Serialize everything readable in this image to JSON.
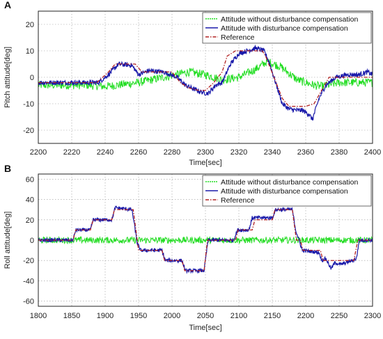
{
  "chart_data": [
    {
      "type": "line",
      "panel": "A",
      "xlabel": "Time[sec]",
      "ylabel": "Pitch attitude[deg]",
      "xlim": [
        2200,
        2400
      ],
      "ylim": [
        -25,
        25
      ],
      "xticks": [
        2200,
        2220,
        2240,
        2260,
        2280,
        2300,
        2320,
        2340,
        2360,
        2380,
        2400
      ],
      "yticks": [
        -20,
        -10,
        0,
        10,
        20
      ],
      "grid": true,
      "legend": "top-right",
      "series": [
        {
          "name": "Attitude without disturbance compensation",
          "color": "#22dd22",
          "style": "noisy",
          "x": [
            2200,
            2230,
            2240,
            2260,
            2275,
            2290,
            2300,
            2310,
            2320,
            2330,
            2337,
            2345,
            2355,
            2365,
            2370,
            2380,
            2400
          ],
          "y": [
            -3,
            -3,
            -3.5,
            -2,
            0,
            2,
            1,
            -1,
            0,
            3,
            6,
            4,
            -1,
            -3,
            -3.5,
            -2,
            -2
          ]
        },
        {
          "name": "Attitude with disturbance compensation",
          "color": "#1a1aaa",
          "style": "solid",
          "x": [
            2200,
            2236,
            2242,
            2248,
            2256,
            2260,
            2266,
            2275,
            2283,
            2288,
            2295,
            2300,
            2302,
            2306,
            2310,
            2315,
            2320,
            2330,
            2335,
            2338,
            2342,
            2346,
            2350,
            2355,
            2358,
            2362,
            2364,
            2368,
            2372,
            2378,
            2385,
            2392,
            2397,
            2400
          ],
          "y": [
            -2,
            -2,
            1,
            5,
            4.5,
            1,
            2.5,
            2,
            0,
            -3,
            -5,
            -6,
            -6,
            -3,
            -2,
            5,
            9,
            11,
            10,
            6,
            -2,
            -10,
            -12,
            -12.5,
            -12.5,
            -14,
            -16,
            -8,
            -3,
            0,
            1,
            1,
            2,
            1
          ]
        },
        {
          "name": "Reference",
          "color": "#b22222",
          "style": "dashdot",
          "x": [
            2200,
            2235,
            2242,
            2246,
            2258,
            2262,
            2280,
            2285,
            2290,
            2296,
            2300,
            2305,
            2310,
            2313,
            2318,
            2330,
            2334,
            2336,
            2346,
            2350,
            2360,
            2365,
            2374,
            2380,
            2400
          ],
          "y": [
            -2,
            -2,
            2,
            5,
            5,
            2,
            2,
            -2,
            -4,
            -5,
            -5,
            -2,
            2,
            8,
            10,
            10,
            10,
            8,
            -8,
            -11,
            -11,
            -10,
            0,
            0,
            0
          ]
        }
      ]
    },
    {
      "type": "line",
      "panel": "B",
      "xlabel": "Time[sec]",
      "ylabel": "Roll attitude[deg]",
      "xlim": [
        1800,
        2300
      ],
      "ylim": [
        -65,
        65
      ],
      "xticks": [
        1800,
        1850,
        1900,
        1950,
        2000,
        2050,
        2100,
        2150,
        2200,
        2250,
        2300
      ],
      "yticks": [
        -60,
        -40,
        -20,
        0,
        20,
        40,
        60
      ],
      "grid": true,
      "legend": "top-right",
      "series": [
        {
          "name": "Attitude without disturbance compensation",
          "color": "#22dd22",
          "style": "noisy",
          "x": [
            1800,
            2300
          ],
          "y": [
            0,
            0
          ]
        },
        {
          "name": "Attitude with disturbance compensation",
          "color": "#1a1aaa",
          "style": "solid",
          "x": [
            1800,
            1852,
            1856,
            1878,
            1882,
            1910,
            1915,
            1940,
            1945,
            1948,
            1953,
            1985,
            1990,
            2015,
            2020,
            2048,
            2054,
            2092,
            2098,
            2115,
            2120,
            2150,
            2155,
            2180,
            2185,
            2190,
            2195,
            2220,
            2224,
            2230,
            2238,
            2244,
            2252,
            2270,
            2276,
            2280,
            2300
          ],
          "y": [
            0,
            0,
            10,
            10,
            20,
            20,
            32,
            30,
            10,
            -3,
            -10,
            -10,
            -20,
            -20,
            -30,
            -30,
            0,
            0,
            10,
            10,
            22,
            22,
            30,
            30,
            10,
            0,
            -10,
            -12,
            -20,
            -18,
            -28,
            -22,
            -24,
            -20,
            -18,
            0,
            0
          ]
        },
        {
          "name": "Reference",
          "color": "#b22222",
          "style": "dashdot",
          "x": [
            1800,
            1852,
            1856,
            1878,
            1882,
            1910,
            1914,
            1942,
            1950,
            1985,
            1989,
            2015,
            2019,
            2048,
            2053,
            2095,
            2099,
            2120,
            2124,
            2150,
            2154,
            2180,
            2186,
            2192,
            2196,
            2222,
            2226,
            2272,
            2278,
            2300
          ],
          "y": [
            0,
            0,
            10,
            10,
            20,
            20,
            30,
            30,
            -10,
            -10,
            -20,
            -20,
            -30,
            -30,
            0,
            0,
            10,
            10,
            20,
            20,
            30,
            30,
            0,
            0,
            -10,
            -10,
            -20,
            -20,
            0,
            0
          ]
        }
      ]
    }
  ]
}
